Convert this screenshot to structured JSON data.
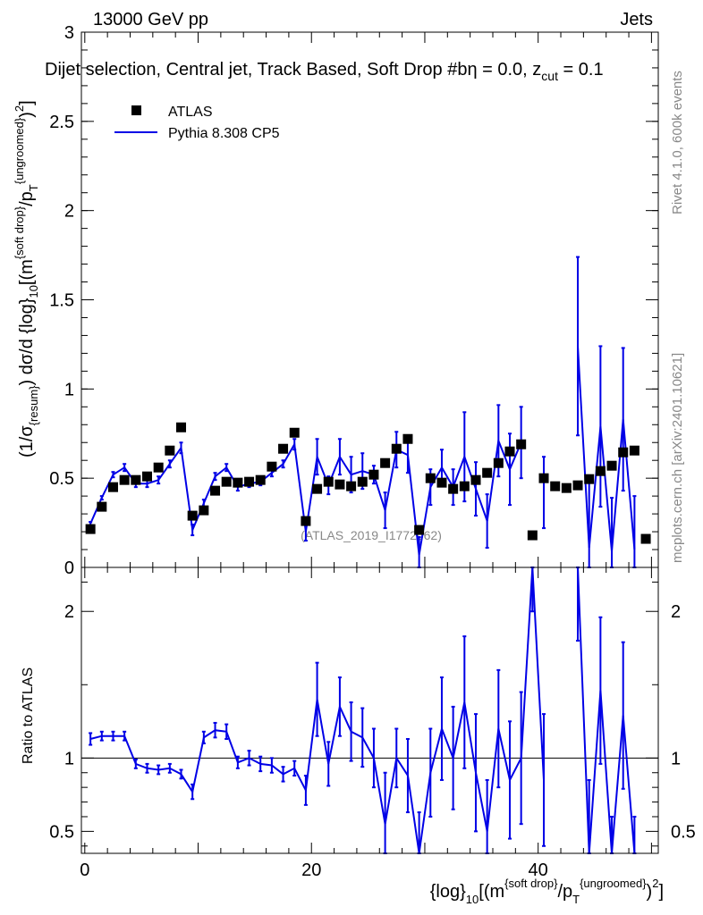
{
  "header": {
    "left": "13000 GeV pp",
    "right": "Jets",
    "plot_title": "Dijet selection, Central jet, Track Based, Soft Drop #b",
    "plot_title_eta": "η = 0.0, z",
    "plot_title_sub": "cut",
    "plot_title_tail": " = 0.1"
  },
  "side_labels": {
    "rivet": "Rivet 4.1.0,  600k events",
    "mcplots": "mcplots.cern.ch [arXiv:2401.10621]"
  },
  "watermark": "(ATLAS_2019_I1772062)",
  "legend": {
    "data_label": "ATLAS",
    "mc_label": "Pythia 8.308 CP5"
  },
  "colors": {
    "data": "#000000",
    "mc": "#0000e6",
    "axis": "#000000",
    "watermark": "#888888",
    "side": "#888888"
  },
  "axes": {
    "main_ylabel": "(1/σ{resum}) dσ/d {log}10[(m{soft drop}/pT{ungroomed})2]",
    "ratio_ylabel": "Ratio to ATLAS",
    "xlabel": "{log}10[(m{soft drop}/pT{ungroomed})2]"
  },
  "chart_data": {
    "type": "scatter",
    "x": [
      0.5,
      1.5,
      2.5,
      3.5,
      4.5,
      5.5,
      6.5,
      7.5,
      8.5,
      9.5,
      10.5,
      11.5,
      12.5,
      13.5,
      14.5,
      15.5,
      16.5,
      17.5,
      18.5,
      19.5,
      20.5,
      21.5,
      22.5,
      23.5,
      24.5,
      25.5,
      26.5,
      27.5,
      28.5,
      29.5,
      30.5,
      31.5,
      32.5,
      33.5,
      34.5,
      35.5,
      36.5,
      37.5,
      38.5,
      39.5,
      40.5,
      41.5,
      42.5,
      43.5,
      44.5,
      45.5,
      46.5,
      47.5,
      48.5,
      49.5
    ],
    "xlim": [
      -0.3,
      50.6
    ],
    "xticks": [
      0,
      20,
      40
    ],
    "main": {
      "ylim": [
        0,
        3
      ],
      "yticks": [
        0,
        0.5,
        1,
        1.5,
        2,
        2.5,
        3
      ],
      "ytick_labels": [
        "0",
        "0.5",
        "1",
        "1.5",
        "2",
        "2.5",
        "3"
      ],
      "series": [
        {
          "name": "ATLAS",
          "style": "markers",
          "values": [
            0.215,
            0.34,
            0.45,
            0.49,
            0.49,
            0.51,
            0.56,
            0.655,
            0.785,
            0.29,
            0.32,
            0.43,
            0.48,
            0.475,
            0.48,
            0.49,
            0.565,
            0.665,
            0.755,
            0.26,
            0.44,
            0.48,
            0.465,
            0.455,
            0.48,
            0.52,
            0.585,
            0.665,
            0.72,
            0.21,
            0.5,
            0.475,
            0.44,
            0.455,
            0.49,
            0.53,
            0.585,
            0.65,
            0.69,
            0.18,
            0.5,
            0.455,
            0.445,
            0.46,
            0.495,
            0.54,
            0.57,
            0.645,
            0.655,
            0.16
          ]
        },
        {
          "name": "Pythia 8.308 CP5",
          "style": "line",
          "values": [
            0.245,
            0.39,
            0.52,
            0.56,
            0.47,
            0.47,
            0.49,
            0.58,
            0.67,
            0.21,
            0.36,
            0.51,
            0.56,
            0.45,
            0.47,
            0.48,
            0.53,
            0.58,
            0.69,
            0.2,
            0.62,
            0.46,
            0.62,
            0.52,
            0.54,
            0.52,
            0.32,
            0.66,
            0.63,
            0.07,
            0.45,
            0.56,
            0.45,
            0.62,
            0.44,
            0.26,
            0.71,
            0.55,
            0.7,
            null,
            0.42,
            null,
            null,
            1.24,
            0.11,
            0.79,
            0.09,
            0.83,
            0.1,
            null
          ],
          "errors": [
            0.01,
            0.01,
            0.015,
            0.02,
            0.02,
            0.02,
            0.02,
            0.02,
            0.03,
            0.03,
            0.02,
            0.02,
            0.02,
            0.02,
            0.02,
            0.02,
            0.02,
            0.02,
            0.03,
            0.05,
            0.1,
            0.05,
            0.1,
            0.1,
            0.1,
            0.05,
            0.1,
            0.1,
            0.1,
            0.1,
            0.1,
            0.1,
            0.1,
            0.25,
            0.15,
            0.15,
            0.2,
            0.2,
            0.2,
            null,
            0.2,
            null,
            null,
            0.5,
            0.4,
            0.45,
            0.3,
            0.4,
            0.3,
            null
          ]
        }
      ]
    },
    "ratio": {
      "ylim": [
        0.35,
        2.3
      ],
      "yticks": [
        0.5,
        1,
        2
      ],
      "ytick_labels": [
        "0.5",
        "1",
        "2"
      ],
      "reference": 1,
      "values": [
        1.13,
        1.15,
        1.15,
        1.15,
        0.96,
        0.93,
        0.92,
        0.93,
        0.89,
        0.77,
        1.14,
        1.19,
        1.18,
        0.97,
        1.0,
        0.96,
        0.95,
        0.89,
        0.93,
        0.78,
        1.4,
        0.96,
        1.35,
        1.18,
        1.14,
        1.0,
        0.55,
        1.0,
        0.88,
        0.33,
        0.9,
        1.2,
        1.0,
        1.38,
        0.9,
        0.5,
        1.2,
        0.85,
        1.0,
        2.3,
        0.85,
        null,
        null,
        2.3,
        0.25,
        1.46,
        0.15,
        1.29,
        0.15,
        null
      ],
      "errors": [
        0.04,
        0.03,
        0.03,
        0.03,
        0.03,
        0.03,
        0.03,
        0.03,
        0.03,
        0.05,
        0.04,
        0.05,
        0.05,
        0.04,
        0.05,
        0.05,
        0.05,
        0.05,
        0.05,
        0.1,
        0.25,
        0.15,
        0.2,
        0.2,
        0.2,
        0.2,
        0.35,
        0.2,
        0.25,
        0.3,
        0.3,
        0.35,
        0.35,
        0.45,
        0.4,
        0.35,
        0.4,
        0.4,
        0.45,
        0.3,
        0.45,
        null,
        null,
        0.5,
        0.6,
        0.5,
        0.45,
        0.5,
        0.45,
        null
      ]
    }
  }
}
